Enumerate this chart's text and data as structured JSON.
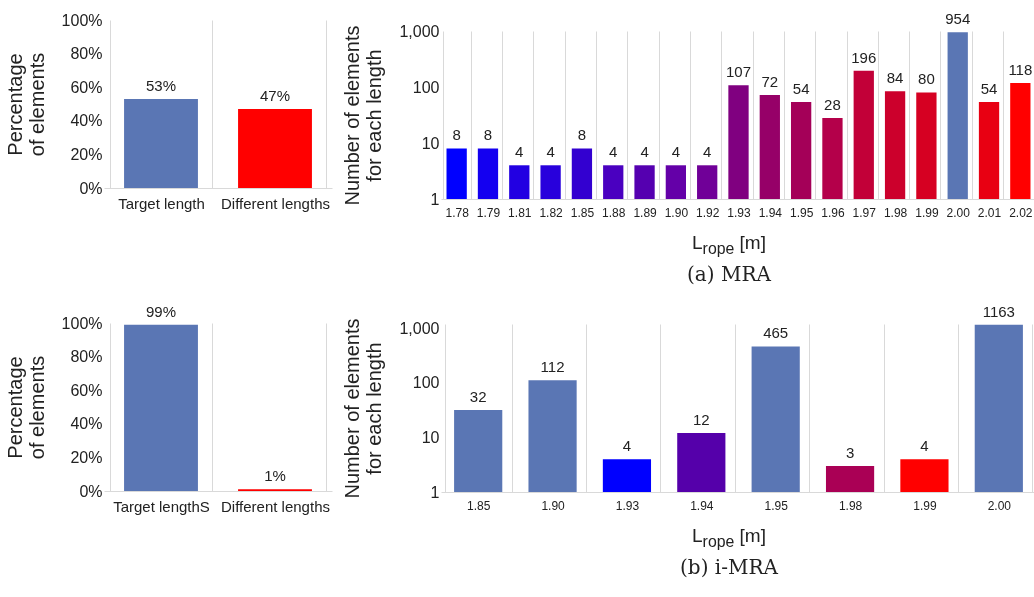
{
  "chart_data": [
    {
      "type": "bar",
      "ylabel": "Percentage of elements",
      "categories": [
        "Target length",
        "Different lengths"
      ],
      "values": [
        53,
        47
      ],
      "colors": [
        "#5a76b4",
        "#ff0000"
      ],
      "value_labels": [
        "53%",
        "47%"
      ],
      "ylim": [
        0,
        100
      ],
      "yticks": [
        {
          "value": 0,
          "label": "0%"
        },
        {
          "value": 20,
          "label": "20%"
        },
        {
          "value": 40,
          "label": "40%"
        },
        {
          "value": 60,
          "label": "60%"
        },
        {
          "value": 80,
          "label": "80%"
        },
        {
          "value": 100,
          "label": "100%"
        }
      ],
      "grid": "x",
      "legend": false
    },
    {
      "type": "bar",
      "xlabel": "L$_{rope}$ [m]",
      "ylabel": "Number of elements for each length",
      "annotations": [
        "(a) MRA"
      ],
      "categories": [
        "1.78",
        "1.79",
        "1.81",
        "1.82",
        "1.85",
        "1.88",
        "1.89",
        "1.90",
        "1.92",
        "1.93",
        "1.94",
        "1.95",
        "1.96",
        "1.97",
        "1.98",
        "1.99",
        "2.00",
        "2.01",
        "2.02"
      ],
      "values": [
        8,
        8,
        4,
        4,
        8,
        4,
        4,
        4,
        4,
        107,
        72,
        54,
        28,
        196,
        84,
        80,
        954,
        54,
        118
      ],
      "colors": [
        "#0000ff",
        "#1400f0",
        "#2200e2",
        "#2800dc",
        "#3300d0",
        "#4a00c0",
        "#5500b0",
        "#6400a8",
        "#700098",
        "#800080",
        "#960068",
        "#a40058",
        "#b4004a",
        "#c20038",
        "#cc002c",
        "#d60022",
        "#5a76b4",
        "#e80012",
        "#ff0000"
      ],
      "data_labels": true,
      "log": true,
      "ylim": [
        1,
        1000
      ],
      "yticks": [
        1,
        10,
        100,
        {
          "value": 1000,
          "label": "1,000"
        }
      ],
      "grid": "x",
      "legend": false
    },
    {
      "type": "bar",
      "ylabel": "Percentage of elements",
      "categories": [
        "Target lengthS",
        "Different lengths"
      ],
      "values": [
        99,
        1
      ],
      "colors": [
        "#5a76b4",
        "#ff0000"
      ],
      "value_labels": [
        "99%",
        "1%"
      ],
      "ylim": [
        0,
        100
      ],
      "yticks": [
        {
          "value": 0,
          "label": "0%"
        },
        {
          "value": 20,
          "label": "20%"
        },
        {
          "value": 40,
          "label": "40%"
        },
        {
          "value": 60,
          "label": "60%"
        },
        {
          "value": 80,
          "label": "80%"
        },
        {
          "value": 100,
          "label": "100%"
        }
      ],
      "grid": "x",
      "legend": false
    },
    {
      "type": "bar",
      "xlabel": "L$_{rope}$ [m]",
      "ylabel": "Number of elements for each length",
      "annotations": [
        "(b) i-MRA"
      ],
      "categories": [
        "1.85",
        "1.90",
        "1.93",
        "1.94",
        "1.95",
        "1.98",
        "1.99",
        "2.00"
      ],
      "values": [
        32,
        112,
        4,
        12,
        465,
        3,
        4,
        1163
      ],
      "colors": [
        "#5a76b4",
        "#5a76b4",
        "#0000ff",
        "#5500aa",
        "#5a76b4",
        "#aa0055",
        "#ff0000",
        "#5a76b4"
      ],
      "data_labels": true,
      "log": true,
      "ylim": [
        1,
        1200
      ],
      "yticks": [
        1,
        10,
        100,
        {
          "value": 1000,
          "label": "1,000"
        }
      ],
      "grid": "x",
      "legend": false
    }
  ]
}
